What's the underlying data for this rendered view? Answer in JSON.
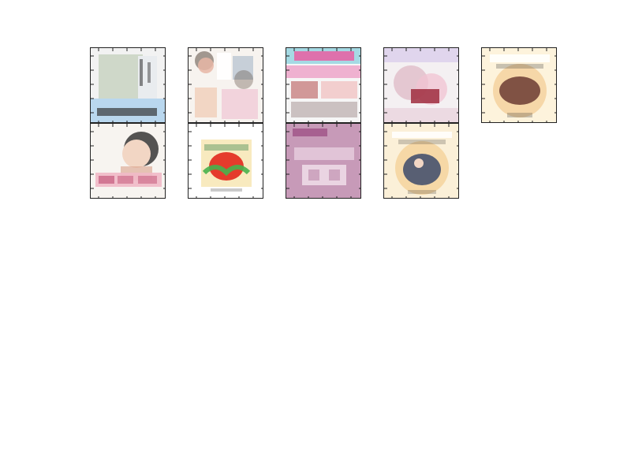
{
  "gallery": {
    "thumbnails": [
      {
        "name": "thumb-1",
        "palette": [
          "#f2f2f2",
          "#cfd8c9",
          "#b9d7ee",
          "#2b2b2b"
        ]
      },
      {
        "name": "thumb-2",
        "palette": [
          "#f7f3ef",
          "#e8b6a6",
          "#a7b7c8",
          "#5b4a3f"
        ]
      },
      {
        "name": "thumb-3",
        "palette": [
          "#f6f6f6",
          "#e75ea2",
          "#6fc8d8",
          "#b24a4a"
        ]
      },
      {
        "name": "thumb-4",
        "palette": [
          "#f4f0f2",
          "#d7a5b6",
          "#9f2d3e",
          "#c7b3e6"
        ]
      },
      {
        "name": "thumb-5",
        "palette": [
          "#fdf3dc",
          "#f1c07d",
          "#6b3b33",
          "#2b2b2b"
        ]
      },
      {
        "name": "thumb-6",
        "palette": [
          "#f7f4f0",
          "#f0b9c7",
          "#2b2b2b",
          "#d8a08a"
        ]
      },
      {
        "name": "thumb-7",
        "palette": [
          "#ffffff",
          "#e53b2c",
          "#47b24d",
          "#f0d070"
        ]
      },
      {
        "name": "thumb-8",
        "palette": [
          "#c79ab8",
          "#f6e7f0",
          "#a35a8c",
          "#ffffff"
        ]
      },
      {
        "name": "thumb-9",
        "palette": [
          "#fbf0d8",
          "#f2c57e",
          "#3c4a6a",
          "#2b2b2b"
        ]
      }
    ]
  }
}
